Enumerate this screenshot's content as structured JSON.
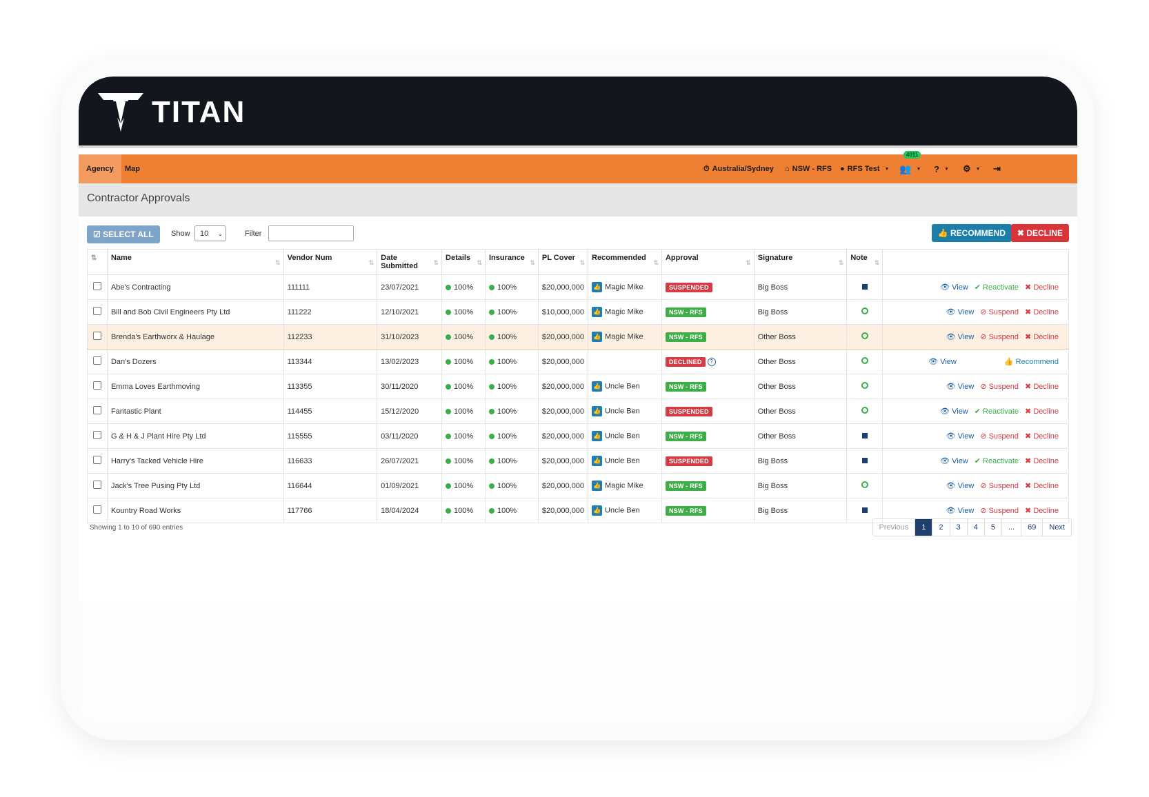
{
  "app": {
    "name": "TITAN"
  },
  "nav": {
    "items": [
      {
        "label": "Agency",
        "active": true
      },
      {
        "label": "Map",
        "active": false
      }
    ],
    "timezone": "Australia/Sydney",
    "agency": "NSW - RFS",
    "user": "RFS Test",
    "notifications_badge": "4011"
  },
  "page": {
    "title": "Contractor Approvals"
  },
  "controls": {
    "select_all": "SELECT ALL",
    "show_label": "Show",
    "show_value": "10",
    "filter_label": "Filter",
    "filter_value": "",
    "recommend": "RECOMMEND",
    "decline": "DECLINE"
  },
  "table": {
    "columns": [
      "Name",
      "Vendor Num",
      "Date Submitted",
      "Details",
      "Insurance",
      "PL Cover",
      "Recommended",
      "Approval",
      "Signature",
      "Note"
    ],
    "rows": [
      {
        "name": "Abe's Contracting",
        "vendor": "111111",
        "date": "23/07/2021",
        "details": "100%",
        "insurance": "100%",
        "pl": "$20,000,000",
        "recommended": "Magic Mike",
        "approval": "SUSPENDED",
        "signature": "Big Boss",
        "note": "square",
        "actions": [
          "View",
          "Reactivate",
          "Decline"
        ]
      },
      {
        "name": "Bill and Bob Civil Engineers Pty Ltd",
        "vendor": "111222",
        "date": "12/10/2021",
        "details": "100%",
        "insurance": "100%",
        "pl": "$10,000,000",
        "recommended": "Magic Mike",
        "approval": "NSW - RFS",
        "signature": "Big Boss",
        "note": "circle",
        "actions": [
          "View",
          "Suspend",
          "Decline"
        ]
      },
      {
        "name": "Brenda's Earthworx & Haulage",
        "vendor": "112233",
        "date": "31/10/2023",
        "details": "100%",
        "insurance": "100%",
        "pl": "$20,000,000",
        "recommended": "Magic Mike",
        "approval": "NSW - RFS",
        "signature": "Other Boss",
        "note": "circle",
        "actions": [
          "View",
          "Suspend",
          "Decline"
        ]
      },
      {
        "name": "Dan's Dozers",
        "vendor": "113344",
        "date": "13/02/2023",
        "details": "100%",
        "insurance": "100%",
        "pl": "$20,000,000",
        "recommended": "",
        "approval": "DECLINED",
        "signature": "Other Boss",
        "note": "circle",
        "actions": [
          "View",
          "Recommend"
        ]
      },
      {
        "name": "Emma Loves Earthmoving",
        "vendor": "113355",
        "date": "30/11/2020",
        "details": "100%",
        "insurance": "100%",
        "pl": "$20,000,000",
        "recommended": "Uncle Ben",
        "approval": "NSW - RFS",
        "signature": "Other Boss",
        "note": "circle",
        "actions": [
          "View",
          "Suspend",
          "Decline"
        ]
      },
      {
        "name": "Fantastic Plant",
        "vendor": "114455",
        "date": "15/12/2020",
        "details": "100%",
        "insurance": "100%",
        "pl": "$20,000,000",
        "recommended": "Uncle Ben",
        "approval": "SUSPENDED",
        "signature": "Other Boss",
        "note": "circle",
        "actions": [
          "View",
          "Reactivate",
          "Decline"
        ]
      },
      {
        "name": "G & H & J Plant Hire Pty Ltd",
        "vendor": "115555",
        "date": "03/11/2020",
        "details": "100%",
        "insurance": "100%",
        "pl": "$20,000,000",
        "recommended": "Uncle Ben",
        "approval": "NSW - RFS",
        "signature": "Other Boss",
        "note": "square",
        "actions": [
          "View",
          "Suspend",
          "Decline"
        ]
      },
      {
        "name": "Harry's Tacked Vehicle Hire",
        "vendor": "116633",
        "date": "26/07/2021",
        "details": "100%",
        "insurance": "100%",
        "pl": "$20,000,000",
        "recommended": "Uncle Ben",
        "approval": "SUSPENDED",
        "signature": "Big Boss",
        "note": "square",
        "actions": [
          "View",
          "Reactivate",
          "Decline"
        ]
      },
      {
        "name": "Jack's Tree Pusing Pty Ltd",
        "vendor": "116644",
        "date": "01/09/2021",
        "details": "100%",
        "insurance": "100%",
        "pl": "$20,000,000",
        "recommended": "Magic Mike",
        "approval": "NSW - RFS",
        "signature": "Big Boss",
        "note": "circle",
        "actions": [
          "View",
          "Suspend",
          "Decline"
        ]
      },
      {
        "name": "Kountry Road Works",
        "vendor": "117766",
        "date": "18/04/2024",
        "details": "100%",
        "insurance": "100%",
        "pl": "$20,000,000",
        "recommended": "Uncle Ben",
        "approval": "NSW - RFS",
        "signature": "Big Boss",
        "note": "square",
        "actions": [
          "View",
          "Suspend",
          "Decline"
        ]
      }
    ]
  },
  "footer": {
    "info": "Showing 1 to 10 of 690 entries",
    "pages": [
      "Previous",
      "1",
      "2",
      "3",
      "4",
      "5",
      "...",
      "69",
      "Next"
    ],
    "current_page": "1"
  }
}
